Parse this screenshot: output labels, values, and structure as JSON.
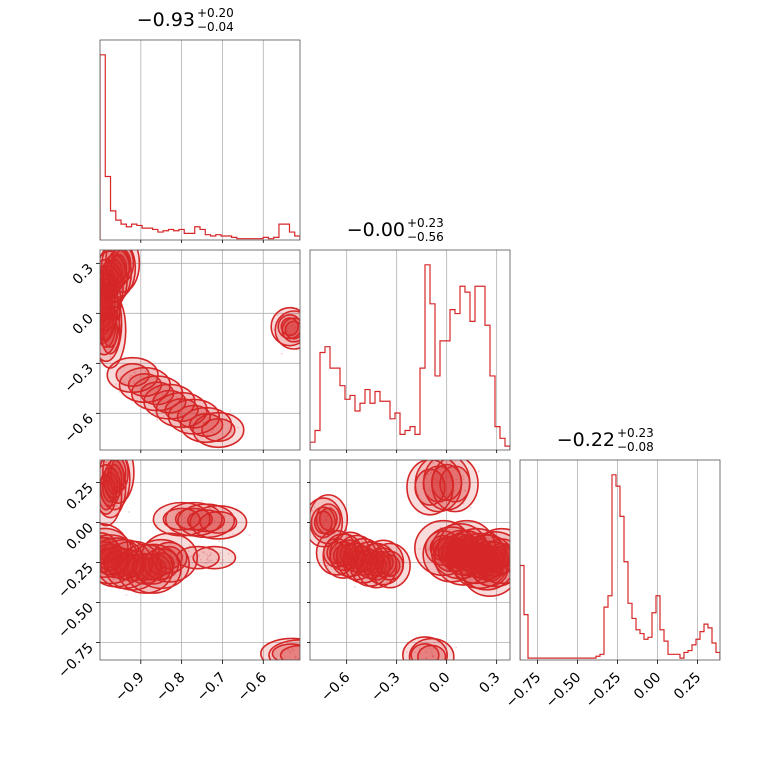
{
  "chart_data": {
    "type": "corner",
    "color": "#d62728",
    "titles": [
      {
        "main": "−0.93",
        "sup": "+0.20",
        "sub": "−0.04"
      },
      {
        "main": "−0.00",
        "sup": "+0.23",
        "sub": "−0.56"
      },
      {
        "main": "−0.22",
        "sup": "+0.23",
        "sub": "−0.08"
      }
    ],
    "ranges": [
      [
        -1.0,
        -0.51
      ],
      [
        -0.82,
        0.38
      ],
      [
        -0.86,
        0.39
      ]
    ],
    "ticks": [
      [
        -0.9,
        -0.8,
        -0.7,
        -0.6
      ],
      [
        -0.6,
        -0.3,
        0.0,
        0.3
      ],
      [
        -0.75,
        -0.5,
        -0.25,
        0.0,
        0.25
      ]
    ],
    "tick_labels": [
      [
        "−0.9",
        "−0.8",
        "−0.7",
        "−0.6"
      ],
      [
        "−0.6",
        "−0.3",
        "0.0",
        "0.3"
      ],
      [
        "−0.75",
        "−0.50",
        "−0.25",
        "0.00",
        "0.25"
      ]
    ],
    "hist": [
      [
        140,
        48,
        22,
        15,
        12,
        10,
        12,
        11,
        9,
        9,
        8,
        6,
        7,
        8,
        7,
        8,
        5,
        5,
        10,
        8,
        4,
        3,
        4,
        3,
        3,
        2,
        1,
        1,
        1,
        1,
        1,
        2,
        1,
        2,
        12,
        12,
        6,
        3
      ],
      [
        4,
        10,
        50,
        53,
        42,
        42,
        33,
        26,
        28,
        20,
        24,
        31,
        24,
        30,
        25,
        25,
        16,
        19,
        8,
        10,
        12,
        8,
        42,
        95,
        75,
        38,
        56,
        56,
        72,
        70,
        84,
        81,
        66,
        84,
        84,
        64,
        38,
        12,
        6,
        2
      ],
      [
        50,
        24,
        1,
        1,
        1,
        1,
        1,
        1,
        1,
        1,
        1,
        1,
        1,
        1,
        1,
        1,
        1,
        1,
        1,
        2,
        3,
        28,
        34,
        98,
        92,
        76,
        52,
        30,
        22,
        16,
        14,
        11,
        12,
        25,
        34,
        16,
        10,
        3,
        3,
        3,
        1,
        4,
        5,
        8,
        11,
        15,
        19,
        17,
        9,
        4
      ]
    ],
    "scatter": [
      {
        "row": 1,
        "col": 0,
        "clusters": [
          {
            "points": [
              [
                -0.99,
                0.07
              ],
              [
                -0.985,
                0.15
              ],
              [
                -0.975,
                0.2
              ],
              [
                -0.965,
                0.24
              ],
              [
                -0.955,
                0.27
              ],
              [
                -0.945,
                0.3
              ]
            ],
            "rx": 0.012,
            "ry": 0.05,
            "levels": [
              0.55,
              0.85,
              1.15
            ]
          },
          {
            "points": [
              [
                -0.995,
                0.05
              ],
              [
                -0.99,
                -0.02
              ],
              [
                -0.985,
                -0.06
              ],
              [
                -0.975,
                -0.1
              ]
            ],
            "rx": 0.01,
            "ry": 0.06,
            "levels": [
              0.5,
              0.8,
              1.1
            ]
          },
          {
            "points": [
              [
                -0.92,
                -0.37
              ],
              [
                -0.89,
                -0.43
              ],
              [
                -0.86,
                -0.48
              ],
              [
                -0.83,
                -0.53
              ],
              [
                -0.8,
                -0.58
              ],
              [
                -0.77,
                -0.62
              ],
              [
                -0.74,
                -0.67
              ],
              [
                -0.71,
                -0.7
              ]
            ],
            "rx": 0.018,
            "ry": 0.03,
            "levels": [
              0.55,
              0.85
            ]
          },
          {
            "points": [
              [
                -0.535,
                -0.08
              ],
              [
                -0.525,
                -0.1
              ]
            ],
            "rx": 0.012,
            "ry": 0.03,
            "levels": [
              0.5,
              0.8,
              1.1
            ]
          }
        ]
      },
      {
        "row": 2,
        "col": 0,
        "clusters": [
          {
            "points": [
              [
                -0.985,
                0.17
              ],
              [
                -0.975,
                0.22
              ],
              [
                -0.965,
                0.27
              ],
              [
                -0.955,
                0.31
              ]
            ],
            "rx": 0.01,
            "ry": 0.05,
            "levels": [
              0.5,
              0.8,
              1.05
            ]
          },
          {
            "points": [
              [
                -1.0,
                -0.16
              ],
              [
                -0.99,
                -0.19
              ],
              [
                -0.975,
                -0.23
              ],
              [
                -0.96,
                -0.25
              ],
              [
                -0.94,
                -0.26
              ],
              [
                -0.92,
                -0.27
              ],
              [
                -0.89,
                -0.29
              ],
              [
                -0.87,
                -0.29
              ],
              [
                -0.85,
                -0.26
              ],
              [
                -0.83,
                -0.22
              ]
            ],
            "rx": 0.018,
            "ry": 0.04,
            "levels": [
              0.5,
              0.8,
              1.1
            ]
          },
          {
            "points": [
              [
                -0.8,
                0.02
              ],
              [
                -0.77,
                0.02
              ],
              [
                -0.74,
                0.01
              ],
              [
                -0.71,
                0.0
              ]
            ],
            "rx": 0.02,
            "ry": 0.03,
            "levels": [
              0.55,
              0.85
            ]
          },
          {
            "points": [
              [
                -0.76,
                -0.22
              ],
              [
                -0.72,
                -0.22
              ]
            ],
            "rx": 0.015,
            "ry": 0.02,
            "levels": [
              0.55
            ]
          },
          {
            "points": [
              [
                -0.53,
                -0.82
              ],
              [
                -0.51,
                -0.83
              ]
            ],
            "rx": 0.02,
            "ry": 0.025,
            "levels": [
              0.5,
              0.8
            ]
          }
        ]
      },
      {
        "row": 2,
        "col": 1,
        "clusters": [
          {
            "points": [
              [
                -0.74,
                0.0
              ],
              [
                -0.71,
                0.02
              ]
            ],
            "rx": 0.03,
            "ry": 0.04,
            "levels": [
              0.5,
              0.8,
              1.1
            ]
          },
          {
            "points": [
              [
                -0.66,
                -0.19
              ],
              [
                -0.62,
                -0.21
              ],
              [
                -0.58,
                -0.2
              ],
              [
                -0.54,
                -0.22
              ],
              [
                -0.5,
                -0.24
              ],
              [
                -0.46,
                -0.26
              ],
              [
                -0.42,
                -0.27
              ],
              [
                -0.38,
                -0.25
              ],
              [
                -0.34,
                -0.27
              ]
            ],
            "rx": 0.035,
            "ry": 0.04,
            "levels": [
              0.55,
              0.85,
              1.15
            ]
          },
          {
            "points": [
              [
                -0.1,
                0.22
              ],
              [
                -0.05,
                0.24
              ],
              [
                0.0,
                0.25
              ],
              [
                0.05,
                0.24
              ]
            ],
            "rx": 0.04,
            "ry": 0.05,
            "levels": [
              0.55,
              0.85
            ]
          },
          {
            "points": [
              [
                -0.02,
                -0.16
              ],
              [
                0.03,
                -0.2
              ],
              [
                0.08,
                -0.18
              ],
              [
                0.12,
                -0.16
              ],
              [
                0.18,
                -0.21
              ],
              [
                0.24,
                -0.25
              ],
              [
                0.29,
                -0.23
              ],
              [
                0.33,
                -0.21
              ],
              [
                0.26,
                -0.29
              ],
              [
                0.2,
                -0.24
              ],
              [
                0.1,
                -0.22
              ]
            ],
            "rx": 0.045,
            "ry": 0.045,
            "levels": [
              0.5,
              0.8,
              1.1,
              1.4
            ]
          },
          {
            "points": [
              [
                -0.13,
                -0.83
              ],
              [
                -0.09,
                -0.84
              ]
            ],
            "rx": 0.035,
            "ry": 0.03,
            "levels": [
              0.5,
              0.8
            ]
          }
        ]
      }
    ]
  }
}
